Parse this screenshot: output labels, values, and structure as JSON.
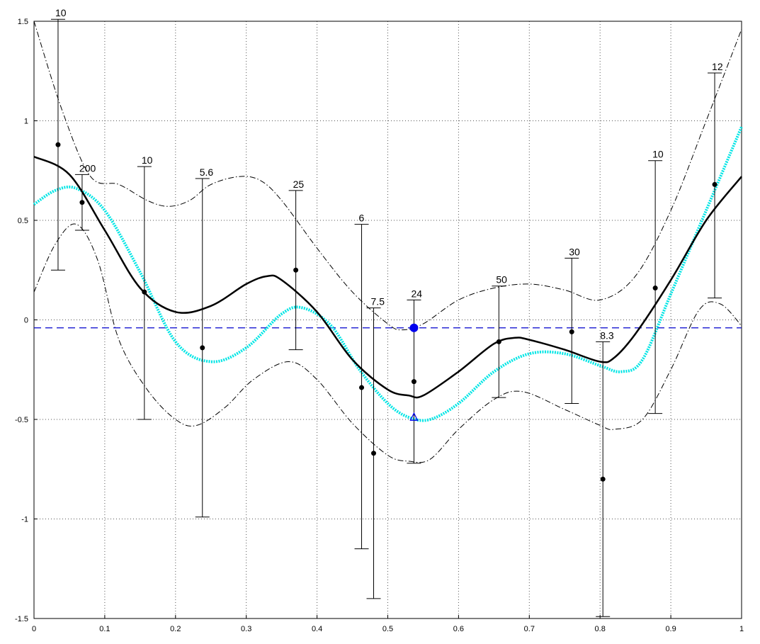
{
  "chart_data": {
    "type": "scatter",
    "title": "",
    "xlabel": "",
    "ylabel": "",
    "xlim": [
      0,
      1
    ],
    "ylim": [
      -1.5,
      1.5
    ],
    "grid": true,
    "x_ticks": [
      "0",
      "0.1",
      "0.2",
      "0.3",
      "0.4",
      "0.5",
      "0.6",
      "0.7",
      "0.8",
      "0.9",
      "1"
    ],
    "y_ticks": [
      "1.5",
      "1",
      "0.5",
      "0",
      "-0.5",
      "-1",
      "-1.5"
    ],
    "colors": {
      "mean_curve": "#000000",
      "alt_curve": "#00e5e5",
      "bounds": "#000000",
      "reference_line": "#0000cc",
      "highlight": "#0000ee",
      "points": "#000000"
    },
    "points": [
      {
        "x": 0.034,
        "y": 0.88,
        "low": 0.25,
        "high": 1.51,
        "label": "10"
      },
      {
        "x": 0.068,
        "y": 0.59,
        "low": 0.45,
        "high": 0.73,
        "label": "200"
      },
      {
        "x": 0.156,
        "y": 0.14,
        "low": -0.5,
        "high": 0.77,
        "label": "10"
      },
      {
        "x": 0.238,
        "y": -0.14,
        "low": -0.99,
        "high": 0.71,
        "label": "5.6"
      },
      {
        "x": 0.37,
        "y": 0.25,
        "low": -0.15,
        "high": 0.65,
        "label": "25"
      },
      {
        "x": 0.463,
        "y": -0.34,
        "low": -1.15,
        "high": 0.48,
        "label": "6"
      },
      {
        "x": 0.48,
        "y": -0.67,
        "low": -1.4,
        "high": 0.06,
        "label": "7.5"
      },
      {
        "x": 0.537,
        "y": -0.31,
        "low": -0.72,
        "high": 0.1,
        "label": "24"
      },
      {
        "x": 0.657,
        "y": -0.11,
        "low": -0.39,
        "high": 0.17,
        "label": "50"
      },
      {
        "x": 0.76,
        "y": -0.06,
        "low": -0.42,
        "high": 0.31,
        "label": "30"
      },
      {
        "x": 0.804,
        "y": -0.8,
        "low": -1.49,
        "high": -0.11,
        "label": "8.3"
      },
      {
        "x": 0.878,
        "y": 0.16,
        "low": -0.47,
        "high": 0.8,
        "label": "10"
      },
      {
        "x": 0.962,
        "y": 0.68,
        "low": 0.11,
        "high": 1.24,
        "label": "12"
      }
    ],
    "highlight_point": {
      "x": 0.537,
      "y": -0.04
    },
    "marker_point": {
      "x": 0.537,
      "y": -0.49
    },
    "reference_line_y": -0.04,
    "mean_curve": {
      "x": [
        0,
        0.05,
        0.1,
        0.15,
        0.2,
        0.25,
        0.3,
        0.33,
        0.35,
        0.4,
        0.45,
        0.5,
        0.53,
        0.55,
        0.6,
        0.65,
        0.68,
        0.7,
        0.75,
        0.8,
        0.82,
        0.85,
        0.9,
        0.95,
        1
      ],
      "y": [
        0.82,
        0.73,
        0.45,
        0.16,
        0.04,
        0.07,
        0.18,
        0.22,
        0.2,
        0.04,
        -0.2,
        -0.35,
        -0.38,
        -0.38,
        -0.26,
        -0.12,
        -0.09,
        -0.1,
        -0.15,
        -0.21,
        -0.19,
        -0.07,
        0.2,
        0.5,
        0.72
      ]
    },
    "alt_curve": {
      "x": [
        0,
        0.03,
        0.06,
        0.1,
        0.15,
        0.2,
        0.25,
        0.3,
        0.35,
        0.38,
        0.42,
        0.46,
        0.5,
        0.53,
        0.56,
        0.6,
        0.65,
        0.7,
        0.75,
        0.8,
        0.83,
        0.86,
        0.9,
        0.95,
        1
      ],
      "y": [
        0.58,
        0.65,
        0.66,
        0.55,
        0.24,
        -0.11,
        -0.21,
        -0.14,
        0.03,
        0.06,
        -0.03,
        -0.25,
        -0.42,
        -0.49,
        -0.5,
        -0.42,
        -0.26,
        -0.17,
        -0.17,
        -0.23,
        -0.26,
        -0.2,
        0.13,
        0.55,
        0.97
      ]
    },
    "upper_bound": {
      "x": [
        0,
        0.04,
        0.08,
        0.12,
        0.16,
        0.19,
        0.22,
        0.25,
        0.29,
        0.32,
        0.35,
        0.4,
        0.45,
        0.5,
        0.52,
        0.55,
        0.6,
        0.65,
        0.7,
        0.75,
        0.8,
        0.85,
        0.9,
        0.95,
        1
      ],
      "y": [
        1.5,
        1.05,
        0.72,
        0.68,
        0.6,
        0.57,
        0.6,
        0.68,
        0.72,
        0.7,
        0.6,
        0.36,
        0.14,
        -0.02,
        -0.05,
        -0.02,
        0.1,
        0.16,
        0.18,
        0.15,
        0.1,
        0.22,
        0.55,
        1.0,
        1.46
      ]
    },
    "lower_bound": {
      "x": [
        0,
        0.03,
        0.06,
        0.09,
        0.12,
        0.16,
        0.2,
        0.23,
        0.27,
        0.31,
        0.36,
        0.4,
        0.45,
        0.5,
        0.53,
        0.56,
        0.6,
        0.65,
        0.69,
        0.75,
        0.8,
        0.82,
        0.86,
        0.9,
        0.94,
        0.97,
        1
      ],
      "y": [
        0.14,
        0.38,
        0.48,
        0.3,
        -0.1,
        -0.35,
        -0.5,
        -0.53,
        -0.44,
        -0.3,
        -0.21,
        -0.3,
        -0.52,
        -0.68,
        -0.71,
        -0.7,
        -0.55,
        -0.4,
        -0.36,
        -0.45,
        -0.53,
        -0.55,
        -0.5,
        -0.25,
        0.05,
        0.08,
        -0.03
      ]
    }
  }
}
